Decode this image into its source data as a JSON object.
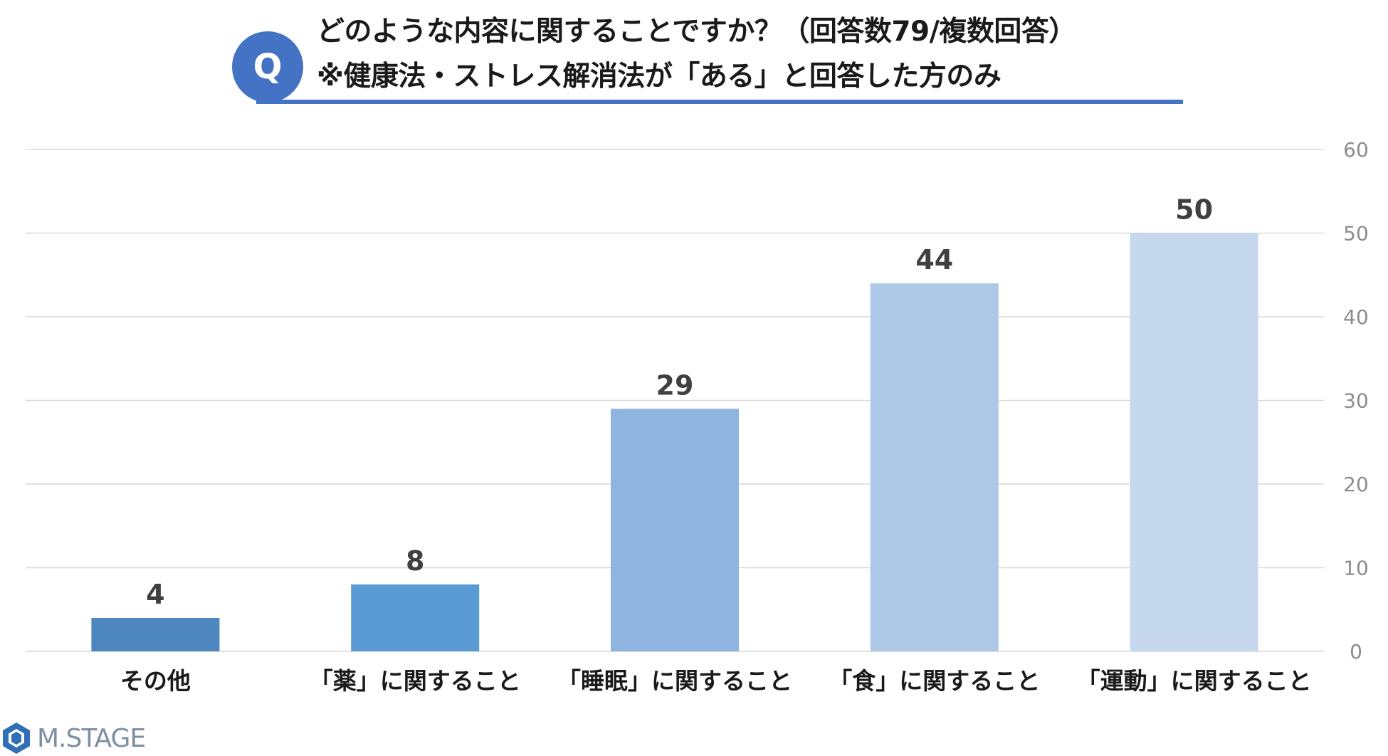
{
  "header": {
    "badge": "Q",
    "title_line1": "どのような内容に関することですか？（回答数79/複数回答）",
    "title_line2": "※健康法・ストレス解消法が「ある」と回答した方のみ"
  },
  "logo": {
    "text": "M.STAGE"
  },
  "chart_data": {
    "type": "bar",
    "categories": [
      "その他",
      "「薬」に関すること",
      "「睡眠」に関すること",
      "「食」に関すること",
      "「運動」に関すること"
    ],
    "values": [
      4,
      8,
      29,
      44,
      50
    ],
    "bar_colors": [
      "#4e86bf",
      "#5b9bd5",
      "#8eb4df",
      "#adc8e7",
      "#c6d8ee"
    ],
    "yticks": [
      0,
      10,
      20,
      30,
      40,
      50,
      60
    ],
    "ylim": [
      0,
      60
    ],
    "y_axis_side": "right",
    "grid": true,
    "title": "",
    "xlabel": "",
    "ylabel": ""
  }
}
